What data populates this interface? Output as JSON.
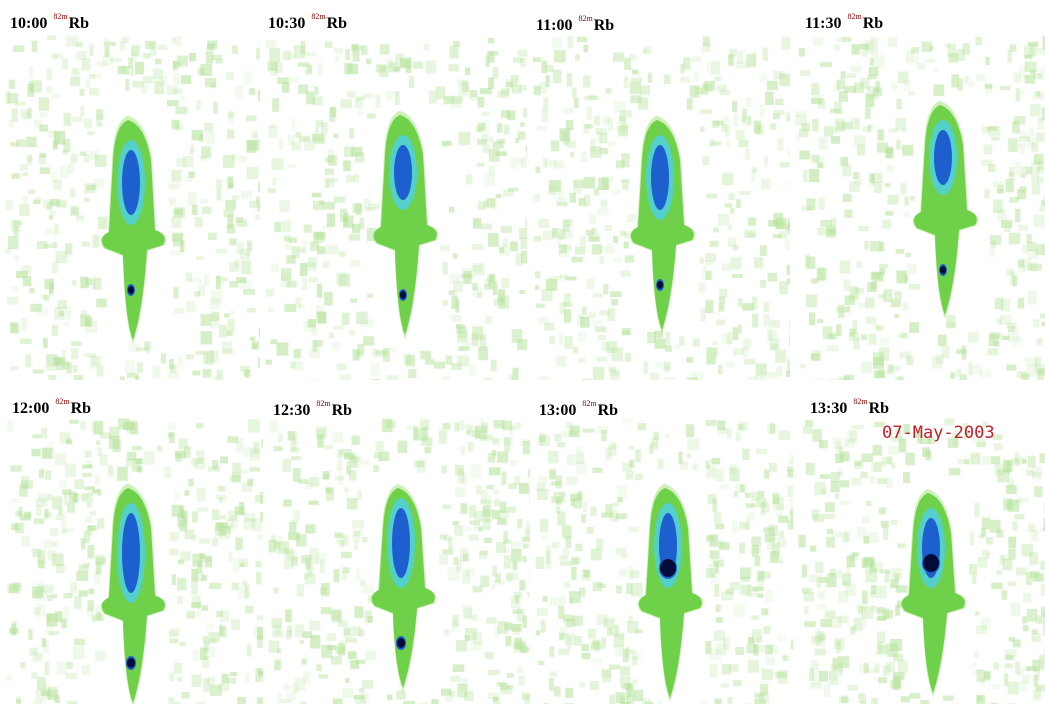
{
  "panels": [
    {
      "time": "10:00",
      "isotope_sup": "82m",
      "isotope": "Rb"
    },
    {
      "time": "10:30",
      "isotope_sup": "82m",
      "isotope": "Rb"
    },
    {
      "time": "11:00",
      "isotope_sup": "82m",
      "isotope": "Rb"
    },
    {
      "time": "11:30",
      "isotope_sup": "82m",
      "isotope": "Rb"
    },
    {
      "time": "12:00",
      "isotope_sup": "82m",
      "isotope": "Rb"
    },
    {
      "time": "12:30",
      "isotope_sup": "82m",
      "isotope": "Rb"
    },
    {
      "time": "13:00",
      "isotope_sup": "82m",
      "isotope": "Rb"
    },
    {
      "time": "13:30",
      "isotope_sup": "82m",
      "isotope": "Rb"
    }
  ],
  "date_stamp": "07-May-2003",
  "colors": {
    "background_noise": "#b5e29a",
    "body_green": "#6fd04a",
    "mid_cyan": "#4fd0e0",
    "high_blue": "#1e5fd0",
    "peak_dark": "#050c3a",
    "label_text": "#000000",
    "superscript_text": "#8b0000",
    "date_text": "#c0202a"
  }
}
